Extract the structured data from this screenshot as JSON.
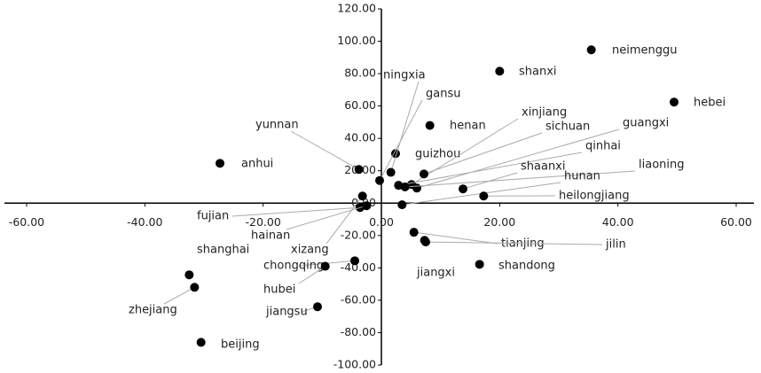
{
  "chart_data": {
    "type": "scatter",
    "color": "#000000",
    "labels": [
      "neimenggu",
      "shanxi",
      "hebei",
      "henan",
      "anhui",
      "guizhou",
      "ningxia",
      "gansu",
      "yunnan",
      "xinjiang",
      "sichuan",
      "guangxi",
      "qinhai",
      "liaoning",
      "shaanxi",
      "hunan",
      "heilongjiang",
      "fujian",
      "hainan",
      "xizang",
      "shanghai",
      "zhejiang",
      "chongqing",
      "hubei",
      "jiangsu",
      "beijing",
      "tianjing",
      "jilin",
      "jiangxi",
      "shandong"
    ],
    "x": [
      35.5,
      20,
      49.5,
      8.2,
      -27.3,
      2.4,
      1.6,
      -0.3,
      -3.8,
      5.1,
      7.2,
      6,
      2.9,
      4,
      13.8,
      3.5,
      17.3,
      -3.6,
      -2.5,
      -3.2,
      -32.5,
      -31.6,
      -4.5,
      -9.5,
      -10.8,
      -30.5,
      5.5,
      7.5,
      7.3,
      16.6
    ],
    "values": [
      94.7,
      81.5,
      62.4,
      48,
      24.6,
      30.6,
      19,
      14,
      20.8,
      11.5,
      18,
      9.3,
      11,
      10,
      8.8,
      -1,
      4.4,
      -2.7,
      -1.6,
      4.4,
      -44.3,
      -52,
      -35.6,
      -39,
      -64,
      -86,
      -18,
      -24,
      -23,
      -37.8
    ],
    "xlim": [
      -60,
      60
    ],
    "xticks": [
      {
        "value": -60,
        "label": "-60.00"
      },
      {
        "value": -40,
        "label": "-40.00"
      },
      {
        "value": -20,
        "label": "-20.00"
      },
      {
        "value": 0,
        "label": "0.00"
      },
      {
        "value": 20,
        "label": "20.00"
      },
      {
        "value": 40,
        "label": "40.00"
      },
      {
        "value": 60,
        "label": "60.00"
      }
    ],
    "ylim": [
      -100,
      120
    ],
    "yticks": [
      {
        "value": -100,
        "label": "-100.00"
      },
      {
        "value": -80,
        "label": "-80.00"
      },
      {
        "value": -60,
        "label": "-60.00"
      },
      {
        "value": -40,
        "label": "-40.00"
      },
      {
        "value": -20,
        "label": "-20.00"
      },
      {
        "value": 0,
        "label": "0.00"
      },
      {
        "value": 20,
        "label": "20.00"
      },
      {
        "value": 40,
        "label": "40.00"
      },
      {
        "value": 60,
        "label": "60.00"
      },
      {
        "value": 80,
        "label": "80.00"
      },
      {
        "value": 100,
        "label": "100.00"
      },
      {
        "value": 120,
        "label": "120.00"
      }
    ]
  }
}
